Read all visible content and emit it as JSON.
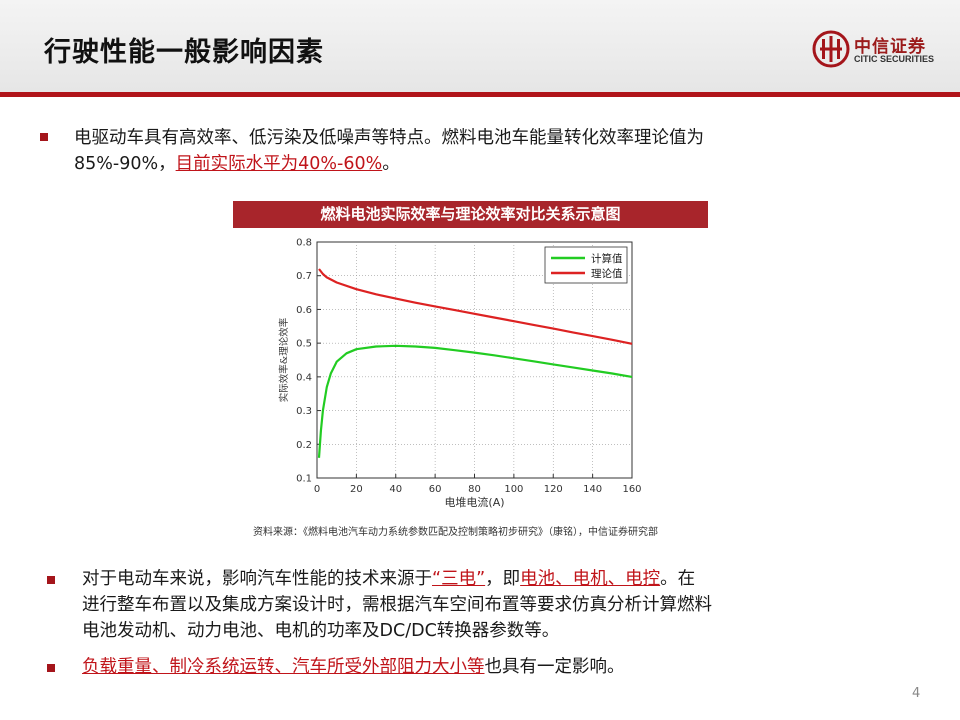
{
  "header": {
    "title": "行驶性能一般影响因素",
    "logo_cn": "中信证券",
    "logo_en": "CITIC SECURITIES"
  },
  "para1": {
    "text_a": "电驱动车具有高效率、低污染及低噪声等特点。燃料电池车能量转化效率理论值为",
    "text_b": "85%-90%，",
    "highlight": "目前实际水平为40%-60%",
    "text_c": "。"
  },
  "chart_data": {
    "type": "line",
    "title": "燃料电池实际效率与理论效率对比关系示意图",
    "xlabel": "电堆电流(A)",
    "ylabel": "实际效率&理论效率",
    "xlim": [
      0,
      160
    ],
    "ylim": [
      0.1,
      0.8
    ],
    "xticks": [
      "0",
      "20",
      "40",
      "60",
      "80",
      "100",
      "120",
      "140",
      "160"
    ],
    "yticks": [
      "0.1",
      "0.2",
      "0.3",
      "0.4",
      "0.5",
      "0.6",
      "0.7",
      "0.8"
    ],
    "grid": true,
    "legend_position": "top-right",
    "series": [
      {
        "name": "计算值",
        "color": "#22cc22",
        "x": [
          1,
          2,
          3,
          5,
          7,
          10,
          15,
          20,
          30,
          40,
          50,
          60,
          70,
          80,
          90,
          100,
          110,
          120,
          130,
          140,
          150,
          160
        ],
        "y": [
          0.16,
          0.24,
          0.3,
          0.37,
          0.41,
          0.445,
          0.47,
          0.482,
          0.49,
          0.492,
          0.49,
          0.486,
          0.479,
          0.472,
          0.464,
          0.455,
          0.446,
          0.437,
          0.428,
          0.419,
          0.41,
          0.4
        ]
      },
      {
        "name": "理论值",
        "color": "#dd2222",
        "x": [
          1,
          3,
          5,
          10,
          20,
          30,
          40,
          50,
          60,
          70,
          80,
          90,
          100,
          110,
          120,
          130,
          140,
          150,
          160
        ],
        "y": [
          0.72,
          0.705,
          0.695,
          0.68,
          0.66,
          0.645,
          0.632,
          0.62,
          0.609,
          0.598,
          0.587,
          0.576,
          0.565,
          0.554,
          0.543,
          0.532,
          0.521,
          0.51,
          0.498
        ]
      }
    ]
  },
  "source": "资料来源：《燃料电池汽车动力系统参数匹配及控制策略初步研究》（康铭），中信证券研究部",
  "para2": {
    "line1_a": "对于电动车来说，影响汽车性能的技术来源于",
    "line1_hl": "“三电”",
    "line1_b": "，即",
    "line1_hl2": "电池、电机、电控",
    "line1_c": "。在",
    "line2": "进行整车布置以及集成方案设计时，需根据汽车空间布置等要求仿真分析计算燃料",
    "line3": "电池发动机、动力电池、电机的功率及DC/DC转换器参数等。"
  },
  "para3": {
    "highlight": "负载重量、制冷系统运转、汽车所受外部阻力大小等",
    "text": "也具有一定影响。"
  },
  "page_number": "4"
}
